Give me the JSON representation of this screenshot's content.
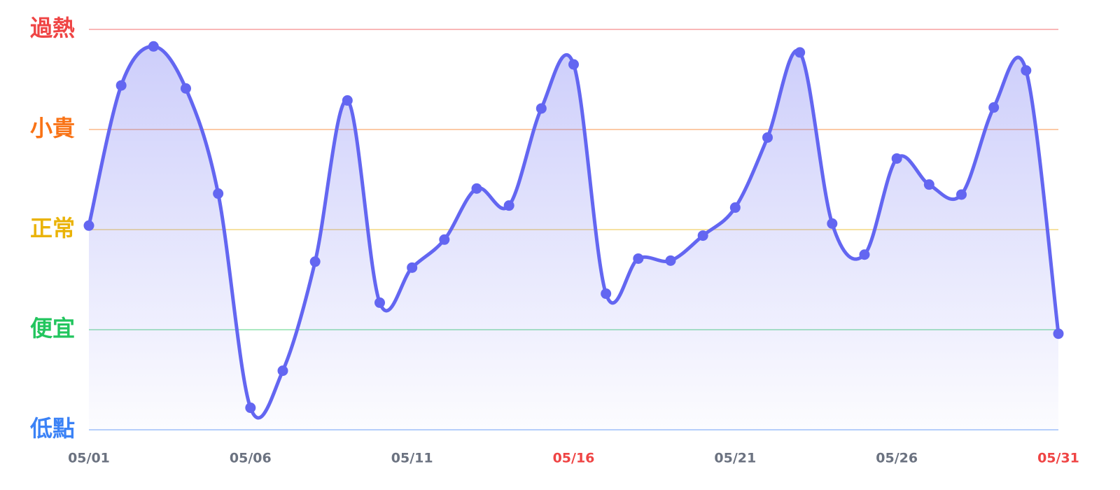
{
  "chart_data": {
    "type": "line",
    "categories": [
      "05/01",
      null,
      null,
      null,
      null,
      "05/06",
      null,
      null,
      null,
      null,
      "05/11",
      null,
      null,
      null,
      null,
      "05/16",
      null,
      null,
      null,
      null,
      "05/21",
      null,
      null,
      null,
      null,
      "05/26",
      null,
      null,
      null,
      null,
      "05/31"
    ],
    "category_colors": [
      "#6b7280",
      null,
      null,
      null,
      null,
      "#6b7280",
      null,
      null,
      null,
      null,
      "#6b7280",
      null,
      null,
      null,
      null,
      "#ef4444",
      null,
      null,
      null,
      null,
      "#6b7280",
      null,
      null,
      null,
      null,
      "#6b7280",
      null,
      null,
      null,
      null,
      "#ef4444"
    ],
    "series": [
      {
        "color": "#6366f1",
        "values": [
          2.04,
          3.44,
          3.83,
          3.41,
          2.36,
          0.22,
          0.59,
          1.68,
          3.29,
          1.27,
          1.62,
          1.9,
          2.41,
          2.24,
          3.21,
          3.65,
          1.36,
          1.71,
          1.69,
          1.94,
          2.22,
          2.92,
          3.77,
          2.06,
          1.75,
          2.71,
          2.45,
          2.35,
          3.22,
          3.59,
          0.96
        ]
      }
    ],
    "ylim": [
      0,
      4
    ],
    "yticks": [
      {
        "value": 0,
        "label": "低點"
      },
      {
        "value": 1,
        "label": "便宜"
      },
      {
        "value": 2,
        "label": "正常"
      },
      {
        "value": 3,
        "label": "小貴"
      },
      {
        "value": 4,
        "label": "過熱"
      }
    ],
    "ytick_colors": [
      "#3b82f6",
      "#22c55e",
      "#eab308",
      "#f97316",
      "#ef4444"
    ],
    "grid": true,
    "smooth": true,
    "area": true
  }
}
